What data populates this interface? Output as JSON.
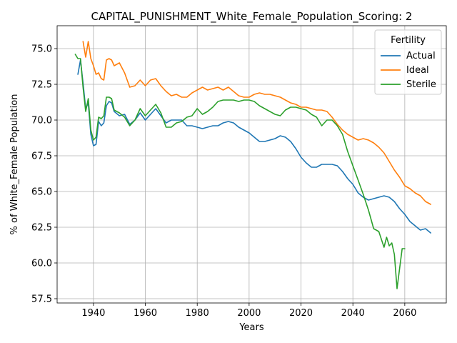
{
  "chart_data": {
    "type": "line",
    "title": "CAPITAL_PUNISHMENT_White_Female_Population_Scoring: 2",
    "xlabel": "Years",
    "ylabel": "% of White_Female Population",
    "xlim": [
      1926,
      2076
    ],
    "ylim": [
      57.2,
      76.6
    ],
    "xticks": [
      1940,
      1960,
      1980,
      2000,
      2020,
      2040,
      2060
    ],
    "yticks": [
      57.5,
      60.0,
      62.5,
      65.0,
      67.5,
      70.0,
      72.5,
      75.0
    ],
    "grid": true,
    "legend": {
      "title": "Fertility",
      "placement": "top-right"
    },
    "series": [
      {
        "name": "Actual",
        "color": "#1f77b4",
        "x": [
          1934,
          1935,
          1936,
          1937,
          1938,
          1939,
          1940,
          1941,
          1942,
          1943,
          1944,
          1945,
          1946,
          1947,
          1948,
          1950,
          1952,
          1954,
          1956,
          1958,
          1960,
          1962,
          1964,
          1966,
          1968,
          1970,
          1972,
          1974,
          1976,
          1978,
          1980,
          1982,
          1984,
          1986,
          1988,
          1990,
          1992,
          1994,
          1996,
          1998,
          2000,
          2002,
          2004,
          2006,
          2008,
          2010,
          2012,
          2014,
          2016,
          2018,
          2020,
          2022,
          2024,
          2026,
          2028,
          2030,
          2032,
          2034,
          2036,
          2038,
          2040,
          2042,
          2044,
          2046,
          2048,
          2050,
          2052,
          2054,
          2056,
          2058,
          2060,
          2062,
          2064,
          2066,
          2068,
          2070
        ],
        "y": [
          73.2,
          74.2,
          72.6,
          70.8,
          71.2,
          69.0,
          68.2,
          68.3,
          69.9,
          69.6,
          69.8,
          71.0,
          71.3,
          71.2,
          70.6,
          70.3,
          70.4,
          69.7,
          70.0,
          70.5,
          70.0,
          70.4,
          70.8,
          70.3,
          69.8,
          70.0,
          70.0,
          70.0,
          69.6,
          69.6,
          69.5,
          69.4,
          69.5,
          69.6,
          69.6,
          69.8,
          69.9,
          69.8,
          69.5,
          69.3,
          69.1,
          68.8,
          68.5,
          68.5,
          68.6,
          68.7,
          68.9,
          68.8,
          68.5,
          68.0,
          67.4,
          67.0,
          66.7,
          66.7,
          66.9,
          66.9,
          66.9,
          66.8,
          66.4,
          65.9,
          65.5,
          64.9,
          64.6,
          64.4,
          64.5,
          64.6,
          64.7,
          64.6,
          64.3,
          63.8,
          63.4,
          62.9,
          62.6,
          62.3,
          62.4,
          62.1
        ]
      },
      {
        "name": "Ideal",
        "color": "#ff7f0e",
        "x": [
          1936,
          1937,
          1938,
          1939,
          1940,
          1941,
          1942,
          1943,
          1944,
          1945,
          1946,
          1947,
          1948,
          1950,
          1952,
          1954,
          1956,
          1958,
          1960,
          1962,
          1964,
          1966,
          1968,
          1970,
          1972,
          1974,
          1976,
          1978,
          1980,
          1982,
          1984,
          1986,
          1988,
          1990,
          1992,
          1994,
          1996,
          1998,
          2000,
          2002,
          2004,
          2006,
          2008,
          2010,
          2012,
          2014,
          2016,
          2018,
          2020,
          2022,
          2024,
          2026,
          2028,
          2030,
          2032,
          2034,
          2036,
          2038,
          2040,
          2042,
          2044,
          2046,
          2048,
          2050,
          2052,
          2054,
          2056,
          2058,
          2060,
          2062,
          2064,
          2066,
          2068,
          2070
        ],
        "y": [
          75.5,
          74.4,
          75.5,
          74.3,
          73.8,
          73.2,
          73.3,
          72.9,
          72.8,
          74.2,
          74.3,
          74.2,
          73.8,
          74.0,
          73.3,
          72.3,
          72.4,
          72.8,
          72.4,
          72.8,
          72.9,
          72.4,
          72.0,
          71.7,
          71.8,
          71.6,
          71.6,
          71.9,
          72.1,
          72.3,
          72.1,
          72.2,
          72.3,
          72.1,
          72.3,
          72.0,
          71.7,
          71.6,
          71.6,
          71.8,
          71.9,
          71.8,
          71.8,
          71.7,
          71.6,
          71.4,
          71.2,
          71.1,
          70.9,
          70.9,
          70.8,
          70.7,
          70.7,
          70.6,
          70.2,
          69.7,
          69.3,
          69.0,
          68.8,
          68.6,
          68.7,
          68.6,
          68.4,
          68.1,
          67.7,
          67.1,
          66.5,
          66.0,
          65.4,
          65.2,
          64.9,
          64.7,
          64.3,
          64.1
        ]
      },
      {
        "name": "Sterile",
        "color": "#2ca02c",
        "x": [
          1933,
          1934,
          1935,
          1936,
          1937,
          1938,
          1939,
          1940,
          1941,
          1942,
          1943,
          1944,
          1945,
          1946,
          1947,
          1948,
          1950,
          1952,
          1954,
          1956,
          1958,
          1960,
          1962,
          1964,
          1966,
          1968,
          1970,
          1972,
          1974,
          1976,
          1978,
          1980,
          1982,
          1984,
          1986,
          1988,
          1990,
          1992,
          1994,
          1996,
          1998,
          2000,
          2002,
          2004,
          2006,
          2008,
          2010,
          2012,
          2014,
          2016,
          2018,
          2020,
          2022,
          2024,
          2026,
          2028,
          2030,
          2032,
          2034,
          2036,
          2038,
          2040,
          2042,
          2044,
          2046,
          2048,
          2050,
          2052,
          2053,
          2054,
          2055,
          2056,
          2057,
          2058,
          2059,
          2060
        ],
        "y": [
          74.6,
          74.3,
          74.3,
          72.3,
          70.6,
          71.5,
          69.3,
          68.6,
          68.8,
          70.2,
          70.1,
          70.3,
          71.6,
          71.6,
          71.5,
          70.7,
          70.5,
          70.2,
          69.6,
          70.0,
          70.8,
          70.3,
          70.7,
          71.1,
          70.5,
          69.5,
          69.5,
          69.8,
          69.9,
          70.2,
          70.3,
          70.8,
          70.4,
          70.6,
          70.9,
          71.3,
          71.4,
          71.4,
          71.4,
          71.3,
          71.4,
          71.4,
          71.3,
          71.0,
          70.8,
          70.6,
          70.4,
          70.3,
          70.7,
          70.9,
          70.9,
          70.8,
          70.7,
          70.4,
          70.2,
          69.6,
          70.0,
          70.0,
          69.6,
          69.0,
          67.8,
          66.8,
          65.8,
          64.8,
          63.7,
          62.4,
          62.2,
          61.1,
          61.8,
          61.2,
          61.4,
          60.6,
          58.2,
          59.6,
          61.0,
          61.0
        ]
      }
    ]
  }
}
